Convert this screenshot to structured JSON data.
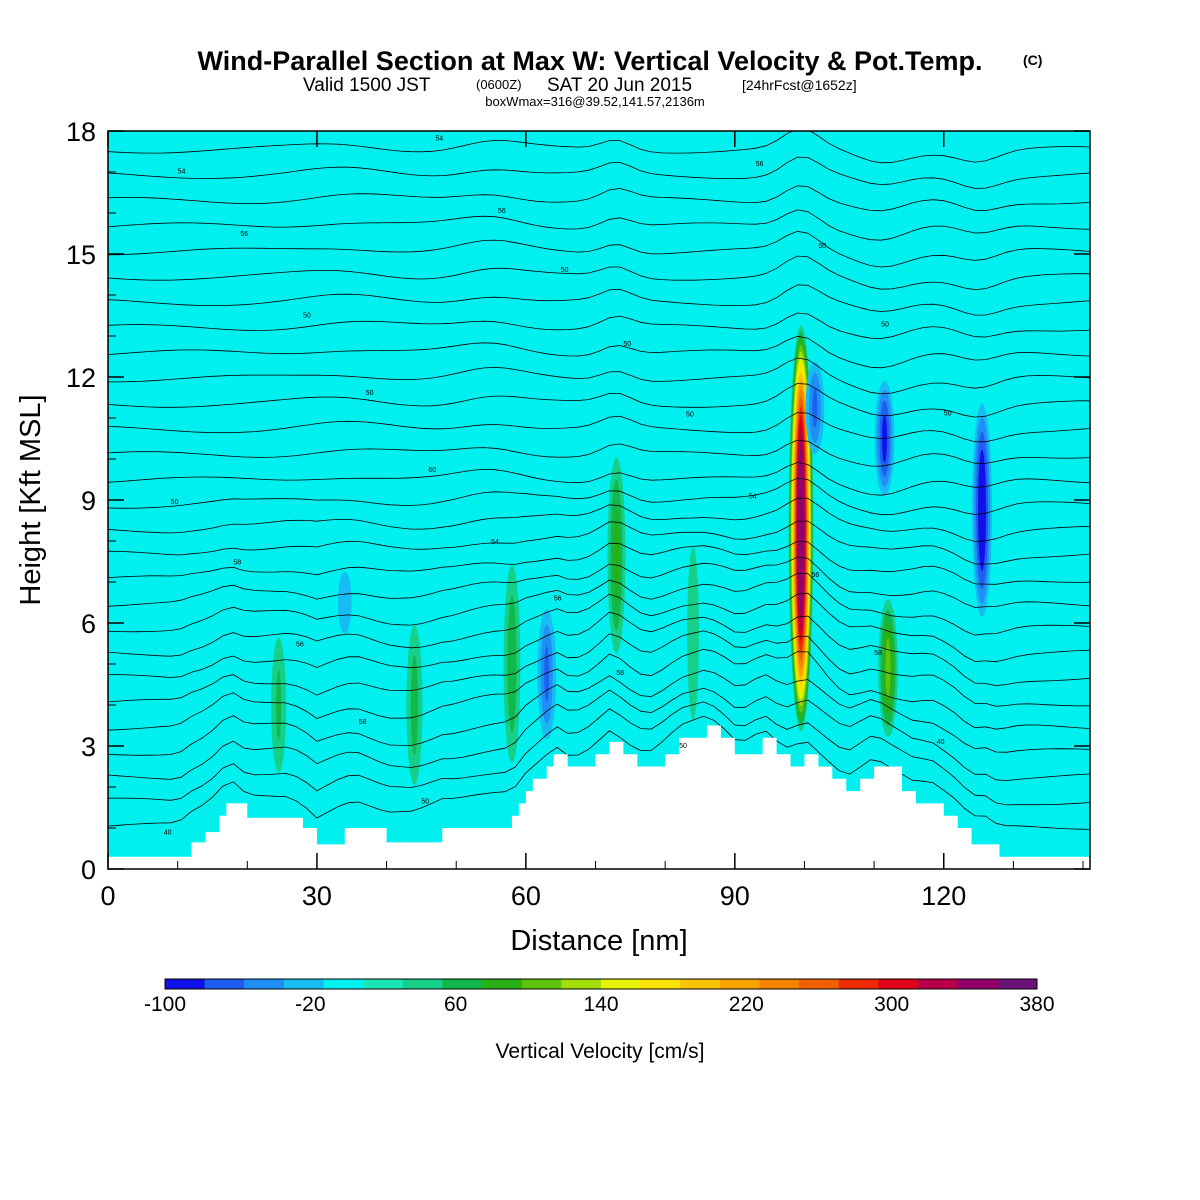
{
  "title": {
    "main": "Wind-Parallel Section at Max W: Vertical Velocity & Pot.Temp.",
    "copyright": "(C)",
    "valid_prefix": "Valid 1500 JST",
    "utc": "(0600Z)",
    "date": "SAT 20 Jun 2015",
    "forecast": "[24hrFcst@1652z]",
    "boxline": "boxWmax=316@39.52,141.57,2136m"
  },
  "chart_data": {
    "type": "heatmap",
    "xlabel": "Distance [nm]",
    "ylabel": "Height [Kft MSL]",
    "xlim": [
      0,
      141
    ],
    "ylim": [
      0,
      18
    ],
    "x_ticks": [
      0,
      30,
      60,
      90,
      120
    ],
    "y_ticks": [
      0,
      3,
      6,
      9,
      12,
      15,
      18
    ],
    "colorbar": {
      "title": "Vertical Velocity [cm/s]",
      "levels": [
        -100,
        -80,
        -60,
        -40,
        -20,
        0,
        20,
        40,
        60,
        80,
        100,
        120,
        140,
        160,
        180,
        200,
        220,
        240,
        260,
        280,
        300,
        320,
        340,
        360,
        380
      ],
      "tick_labels": [
        "-100",
        "-20",
        "60",
        "140",
        "220",
        "300",
        "380"
      ],
      "colors": [
        "#1010e8",
        "#1e5ef0",
        "#1e90f5",
        "#17bdf2",
        "#00f0f0",
        "#1ae8b4",
        "#16d08a",
        "#13b84a",
        "#28b014",
        "#5fc40f",
        "#a2dc0a",
        "#e6f200",
        "#fde100",
        "#fcc200",
        "#f9a300",
        "#f48200",
        "#f06000",
        "#ec2c00",
        "#e0001a",
        "#b8004a",
        "#900068",
        "#6a1278"
      ]
    },
    "background_value_cm_s": -5,
    "updrafts": [
      {
        "x_nm": 99.5,
        "base_kft": 3.2,
        "top_kft": 13.4,
        "max_cm_s": 316
      },
      {
        "x_nm": 112,
        "base_kft": 3.0,
        "top_kft": 6.8,
        "max_cm_s": 80
      },
      {
        "x_nm": 73,
        "base_kft": 4.8,
        "top_kft": 10.5,
        "max_cm_s": 60
      },
      {
        "x_nm": 58,
        "base_kft": 2.0,
        "top_kft": 8.0,
        "max_cm_s": 50
      },
      {
        "x_nm": 44,
        "base_kft": 1.5,
        "top_kft": 6.5,
        "max_cm_s": 45
      },
      {
        "x_nm": 24.5,
        "base_kft": 1.8,
        "top_kft": 6.2,
        "max_cm_s": 40
      },
      {
        "x_nm": 84,
        "base_kft": 2.5,
        "top_kft": 9.0,
        "max_cm_s": 30
      }
    ],
    "downdrafts": [
      {
        "x_nm": 125.5,
        "base_kft": 6.0,
        "top_kft": 11.5,
        "min_cm_s": -95
      },
      {
        "x_nm": 111.5,
        "base_kft": 9.0,
        "top_kft": 12.0,
        "min_cm_s": -80
      },
      {
        "x_nm": 101.5,
        "base_kft": 10.0,
        "top_kft": 12.5,
        "min_cm_s": -60
      },
      {
        "x_nm": 63,
        "base_kft": 3.0,
        "top_kft": 6.5,
        "min_cm_s": -60
      },
      {
        "x_nm": 34,
        "base_kft": 5.5,
        "top_kft": 7.5,
        "min_cm_s": -30
      }
    ],
    "terrain_profile": {
      "x_nm": [
        0,
        10,
        12,
        14,
        16,
        17,
        18,
        20,
        26,
        28,
        30,
        34,
        36,
        40,
        44,
        48,
        50,
        58,
        59,
        60,
        61,
        62,
        63,
        64,
        66,
        68,
        70,
        72,
        74,
        76,
        78,
        80,
        82,
        86,
        88,
        90,
        92,
        94,
        96,
        98,
        100,
        102,
        104,
        106,
        108,
        110,
        114,
        116,
        118,
        120,
        122,
        124,
        126,
        128,
        131,
        141
      ],
      "height_kft": [
        0.3,
        0.3,
        0.65,
        0.9,
        1.3,
        1.6,
        1.6,
        1.25,
        1.25,
        1.0,
        0.6,
        1.0,
        1.0,
        0.65,
        0.65,
        1.0,
        1.0,
        1.3,
        1.6,
        1.9,
        2.2,
        2.2,
        2.5,
        2.8,
        2.5,
        2.5,
        2.8,
        3.1,
        2.8,
        2.5,
        2.5,
        2.8,
        3.2,
        3.5,
        3.2,
        2.8,
        2.8,
        3.2,
        2.8,
        2.5,
        2.8,
        2.5,
        2.2,
        1.9,
        2.2,
        2.5,
        1.9,
        1.6,
        1.6,
        1.3,
        1.0,
        0.6,
        0.6,
        0.3,
        0.3,
        0.3
      ]
    },
    "theta_contours": {
      "units": "K",
      "labels": [
        "40",
        "50",
        "50",
        "40",
        "58",
        "58",
        "58",
        "56",
        "56",
        "56",
        "58",
        "54",
        "54",
        "50",
        "60",
        "50",
        "50",
        "50",
        "50",
        "50",
        "50",
        "50",
        "50",
        "56",
        "56",
        "56",
        "54",
        "54"
      ]
    }
  }
}
